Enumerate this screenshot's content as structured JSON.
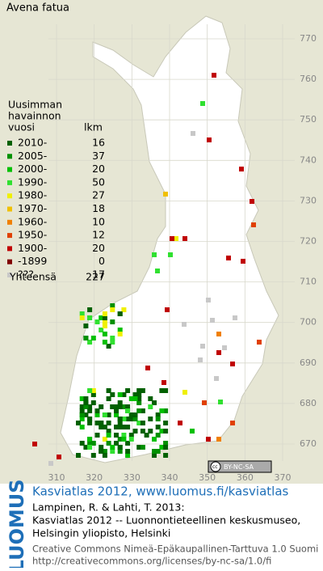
{
  "map": {
    "title": "Avena fatua",
    "legend": {
      "heading": [
        "Uusimman",
        "havainnon",
        "vuosi"
      ],
      "count_heading": "lkm",
      "rows": [
        {
          "label": "2010-",
          "count": 16,
          "color": "#006000"
        },
        {
          "label": "2005-",
          "count": 37,
          "color": "#009000"
        },
        {
          "label": "2000-",
          "count": 20,
          "color": "#00c000"
        },
        {
          "label": "1990-",
          "count": 50,
          "color": "#30e030"
        },
        {
          "label": "1980-",
          "count": 27,
          "color": "#f0f000"
        },
        {
          "label": "1970-",
          "count": 18,
          "color": "#f0c000"
        },
        {
          "label": "1960-",
          "count": 10,
          "color": "#f08000"
        },
        {
          "label": "1950-",
          "count": 12,
          "color": "#e04000"
        },
        {
          "label": "1900-",
          "count": 20,
          "color": "#c00000"
        },
        {
          "label": "-1899",
          "count": 0,
          "color": "#800000"
        },
        {
          "label": "???",
          "count": 17,
          "color": "#c8c8c8"
        }
      ],
      "total_label": "Yhteensä",
      "total": 227
    },
    "xticks": [
      310,
      320,
      330,
      340,
      350,
      360,
      370
    ],
    "yticks": [
      670,
      680,
      690,
      700,
      710,
      720,
      730,
      740,
      750,
      760,
      770
    ],
    "cc_badge": "BY-NC-SA"
  },
  "footer": {
    "logo": "LUOMUS",
    "link": "Kasviatlas 2012, www.luomus.fi/kasviatlas",
    "citation": [
      "Lampinen, R. & Lahti, T. 2013:",
      "Kasviatlas 2012 -- Luonnontieteellinen keskusmuseo,",
      "Helsingin yliopisto, Helsinki"
    ],
    "license": [
      "Creative Commons Nimeä-Epäkaupallinen-Tarttuva 1.0 Suomi",
      "http://creativecommons.org/licenses/by-nc-sa/1.0/fi"
    ]
  }
}
